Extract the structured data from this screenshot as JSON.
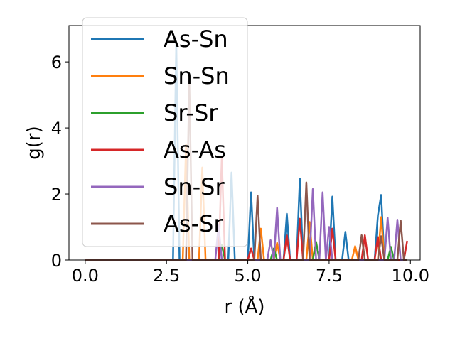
{
  "chart_data": {
    "type": "line",
    "title": "",
    "xlabel": "r (Å)",
    "ylabel": "g(r)",
    "xlim": [
      -0.5,
      10.3
    ],
    "ylim": [
      0,
      7.1
    ],
    "xticks": [
      0.0,
      2.5,
      5.0,
      7.5,
      10.0
    ],
    "xtick_labels": [
      "0.0",
      "2.5",
      "5.0",
      "7.5",
      "10.0"
    ],
    "yticks": [
      0,
      2,
      4,
      6
    ],
    "ytick_labels": [
      "0",
      "2",
      "4",
      "6"
    ],
    "grid": false,
    "legend_position": "top-left",
    "series": [
      {
        "name": "As-Sn",
        "color": "#1f77b4",
        "points": [
          [
            0,
            0
          ],
          [
            2.7,
            0
          ],
          [
            2.8,
            6.6
          ],
          [
            2.9,
            0
          ],
          [
            4.4,
            0
          ],
          [
            4.5,
            2.65
          ],
          [
            4.6,
            0
          ],
          [
            5.0,
            0
          ],
          [
            5.1,
            2.05
          ],
          [
            5.2,
            0
          ],
          [
            6.1,
            0
          ],
          [
            6.2,
            1.4
          ],
          [
            6.3,
            0
          ],
          [
            6.5,
            0
          ],
          [
            6.6,
            2.47
          ],
          [
            6.7,
            0
          ],
          [
            7.5,
            0
          ],
          [
            7.6,
            1.92
          ],
          [
            7.7,
            0
          ],
          [
            7.9,
            0
          ],
          [
            8.0,
            0.85
          ],
          [
            8.1,
            0
          ],
          [
            8.9,
            0
          ],
          [
            9.0,
            1.35
          ],
          [
            9.1,
            1.97
          ],
          [
            9.2,
            0
          ],
          [
            9.9,
            0
          ]
        ]
      },
      {
        "name": "Sn-Sn",
        "color": "#ff7f0e",
        "points": [
          [
            0,
            0
          ],
          [
            3.0,
            0
          ],
          [
            3.1,
            3.5
          ],
          [
            3.2,
            0
          ],
          [
            3.5,
            0
          ],
          [
            3.6,
            2.8
          ],
          [
            3.7,
            0
          ],
          [
            5.3,
            0
          ],
          [
            5.4,
            0.95
          ],
          [
            5.5,
            0
          ],
          [
            5.8,
            0
          ],
          [
            5.9,
            0.52
          ],
          [
            6.0,
            0
          ],
          [
            6.8,
            0
          ],
          [
            6.9,
            1.15
          ],
          [
            7.0,
            0
          ],
          [
            8.2,
            0
          ],
          [
            8.3,
            0.42
          ],
          [
            8.4,
            0
          ],
          [
            9.0,
            0
          ],
          [
            9.1,
            1.3
          ],
          [
            9.2,
            0
          ],
          [
            9.9,
            0
          ]
        ]
      },
      {
        "name": "Sr-Sr",
        "color": "#2ca02c",
        "points": [
          [
            0,
            0
          ],
          [
            4.1,
            0
          ],
          [
            4.2,
            0.45
          ],
          [
            4.3,
            0
          ],
          [
            5.7,
            0
          ],
          [
            5.8,
            0.35
          ],
          [
            5.9,
            0
          ],
          [
            7.0,
            0
          ],
          [
            7.1,
            0.55
          ],
          [
            7.2,
            0
          ],
          [
            9.3,
            0
          ],
          [
            9.4,
            0.4
          ],
          [
            9.5,
            0
          ],
          [
            9.9,
            0
          ]
        ]
      },
      {
        "name": "As-As",
        "color": "#d62728",
        "points": [
          [
            0,
            0
          ],
          [
            4.1,
            0
          ],
          [
            4.2,
            3.1
          ],
          [
            4.3,
            0
          ],
          [
            5.0,
            0
          ],
          [
            5.1,
            0.35
          ],
          [
            5.2,
            0
          ],
          [
            6.1,
            0
          ],
          [
            6.2,
            0.75
          ],
          [
            6.3,
            0
          ],
          [
            6.5,
            0
          ],
          [
            6.6,
            1.25
          ],
          [
            6.7,
            0
          ],
          [
            7.5,
            0
          ],
          [
            7.6,
            0.95
          ],
          [
            7.7,
            0
          ],
          [
            8.5,
            0
          ],
          [
            8.6,
            0.75
          ],
          [
            8.7,
            0
          ],
          [
            8.9,
            0
          ],
          [
            9.0,
            0.7
          ],
          [
            9.1,
            0
          ],
          [
            9.8,
            0
          ],
          [
            9.9,
            0.58
          ]
        ]
      },
      {
        "name": "Sn-Sr",
        "color": "#9467bd",
        "points": [
          [
            0,
            0
          ],
          [
            4.0,
            0
          ],
          [
            4.1,
            1.05
          ],
          [
            4.2,
            0
          ],
          [
            5.6,
            0
          ],
          [
            5.7,
            0.6
          ],
          [
            5.8,
            0
          ],
          [
            5.8,
            0
          ],
          [
            5.9,
            1.58
          ],
          [
            6.0,
            0
          ],
          [
            6.9,
            0
          ],
          [
            7.0,
            2.15
          ],
          [
            7.1,
            0
          ],
          [
            7.2,
            0
          ],
          [
            7.3,
            2.05
          ],
          [
            7.4,
            0
          ],
          [
            7.4,
            0
          ],
          [
            7.5,
            1.0
          ],
          [
            7.6,
            0
          ],
          [
            9.2,
            0
          ],
          [
            9.3,
            1.28
          ],
          [
            9.4,
            0
          ],
          [
            9.5,
            0
          ],
          [
            9.6,
            1.22
          ],
          [
            9.7,
            0
          ],
          [
            9.9,
            0
          ]
        ]
      },
      {
        "name": "As-Sr",
        "color": "#8c564b",
        "points": [
          [
            0,
            0
          ],
          [
            3.1,
            0
          ],
          [
            3.2,
            5.45
          ],
          [
            3.3,
            0
          ],
          [
            5.2,
            0
          ],
          [
            5.3,
            1.95
          ],
          [
            5.4,
            0
          ],
          [
            6.7,
            0
          ],
          [
            6.8,
            2.35
          ],
          [
            6.9,
            0
          ],
          [
            8.4,
            0
          ],
          [
            8.5,
            0.75
          ],
          [
            8.6,
            0
          ],
          [
            9.0,
            0
          ],
          [
            9.1,
            0.72
          ],
          [
            9.2,
            0
          ],
          [
            9.6,
            0
          ],
          [
            9.7,
            1.2
          ],
          [
            9.8,
            0
          ],
          [
            9.9,
            0
          ]
        ]
      }
    ]
  }
}
